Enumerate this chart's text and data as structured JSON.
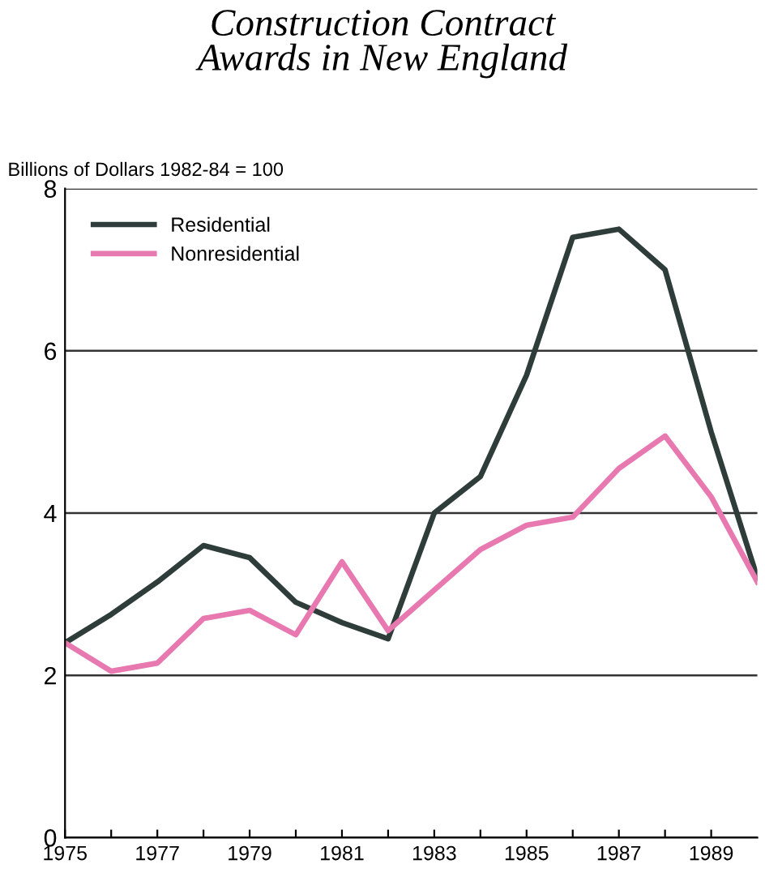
{
  "chart_data": {
    "type": "line",
    "title": "Construction Contract\nAwards in New England",
    "ylabel": "Billions of Dollars 1982-84 = 100",
    "x": [
      1975,
      1976,
      1977,
      1978,
      1979,
      1980,
      1981,
      1982,
      1983,
      1984,
      1985,
      1986,
      1987,
      1988,
      1989,
      1990
    ],
    "series": [
      {
        "name": "Residential",
        "color": "#2f3d3a",
        "values": [
          2.4,
          2.75,
          3.15,
          3.6,
          3.45,
          2.9,
          2.65,
          2.45,
          4.0,
          4.45,
          5.7,
          7.4,
          7.5,
          7.0,
          5.0,
          3.2
        ]
      },
      {
        "name": "Nonresidential",
        "color": "#e879b0",
        "values": [
          2.4,
          2.05,
          2.15,
          2.7,
          2.8,
          2.5,
          3.4,
          2.55,
          3.05,
          3.55,
          3.85,
          3.95,
          4.55,
          4.95,
          4.2,
          3.15
        ]
      }
    ],
    "xlim": [
      1975,
      1990
    ],
    "xticks": [
      1975,
      {
        "value": 1976,
        "label": null
      },
      1977,
      {
        "value": 1978,
        "label": null
      },
      1979,
      {
        "value": 1980,
        "label": null
      },
      1981,
      {
        "value": 1982,
        "label": null
      },
      1983,
      {
        "value": 1984,
        "label": null
      },
      1985,
      {
        "value": 1986,
        "label": null
      },
      1987,
      {
        "value": 1988,
        "label": null
      },
      1989
    ],
    "ylim": [
      0,
      8
    ],
    "yticks": [
      0,
      2,
      4,
      6,
      8
    ],
    "grid": "y",
    "legend": "top left",
    "marker": "none",
    "line_style": "solid"
  }
}
